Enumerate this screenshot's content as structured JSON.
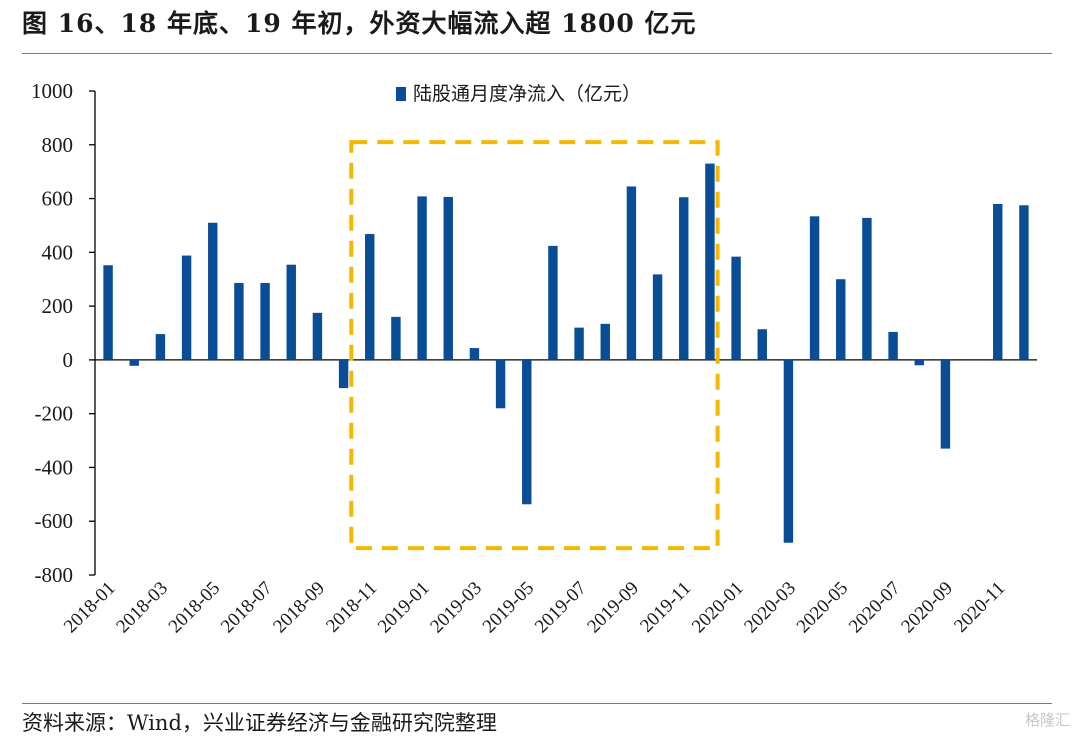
{
  "figure": {
    "title": "图 16、18 年底、19 年初，外资大幅流入超 1800 亿元",
    "source": "资料来源：Wind，兴业证券经济与金融研究院整理",
    "watermark": "格隆汇"
  },
  "colors": {
    "bar": "#0a4d97",
    "highlight_box": "#f5b800",
    "axis": "#000000",
    "text": "#1a1a1a"
  },
  "chart_data": {
    "type": "bar",
    "series": [
      {
        "name": "陆股通月度净流入（亿元）",
        "values": [
          352,
          -22,
          96,
          388,
          510,
          286,
          286,
          354,
          175,
          -105,
          468,
          160,
          608,
          606,
          44,
          -180,
          -537,
          424,
          120,
          134,
          645,
          318,
          605,
          730,
          384,
          114,
          -680,
          534,
          300,
          528,
          104,
          -20,
          -330,
          0,
          580,
          575
        ]
      }
    ],
    "categories": [
      "2018-01",
      "2018-02",
      "2018-03",
      "2018-04",
      "2018-05",
      "2018-06",
      "2018-07",
      "2018-08",
      "2018-09",
      "2018-10",
      "2018-11",
      "2018-12",
      "2019-01",
      "2019-02",
      "2019-03",
      "2019-04",
      "2019-05",
      "2019-06",
      "2019-07",
      "2019-08",
      "2019-09",
      "2019-10",
      "2019-11",
      "2019-12",
      "2020-01",
      "2020-02",
      "2020-03",
      "2020-04",
      "2020-05",
      "2020-06",
      "2020-07",
      "2020-08",
      "2020-09",
      "2020-10",
      "2020-11",
      "2020-12"
    ],
    "x_tick_labels": [
      "2018-01",
      "2018-03",
      "2018-05",
      "2018-07",
      "2018-09",
      "2018-11",
      "2019-01",
      "2019-03",
      "2019-05",
      "2019-07",
      "2019-09",
      "2019-11",
      "2020-01",
      "2020-03",
      "2020-05",
      "2020-07",
      "2020-09",
      "2020-11"
    ],
    "y_ticks": [
      1000,
      800,
      600,
      400,
      200,
      0,
      -200,
      -400,
      -600,
      -800
    ],
    "ylim": [
      -800,
      1000
    ],
    "legend_position": "top-center",
    "grid": false,
    "highlight_range": [
      "2018-10",
      "2019-12"
    ]
  }
}
